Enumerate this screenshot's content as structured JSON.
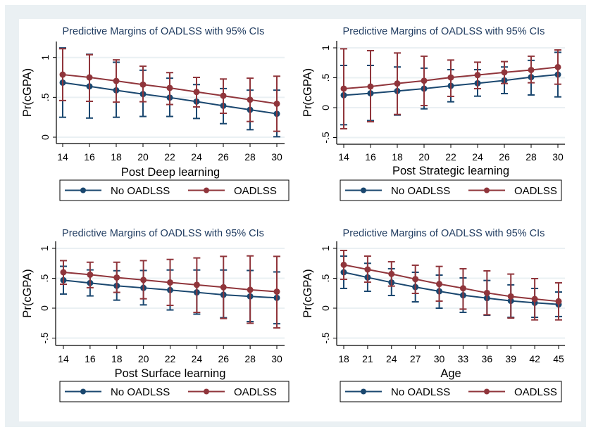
{
  "colors": {
    "no_oadlss": "#1a476f",
    "oadlss": "#90353b",
    "grid": "#eaf0f3",
    "frame": "#eaf0f3",
    "title": "#1e3a5f"
  },
  "chart_data": [
    {
      "type": "line",
      "title": "Predictive Margins of OADLSS with 95% CIs",
      "xlabel": "Post Deep learning",
      "ylabel": "Pr(cGPA)",
      "x": [
        14,
        16,
        18,
        20,
        22,
        24,
        26,
        28,
        30
      ],
      "x_ticks": [
        "14",
        "16",
        "18",
        "20",
        "22",
        "24",
        "26",
        "28",
        "30"
      ],
      "ylim": [
        -0.05,
        1.2
      ],
      "y_ticks": [
        0,
        0.5,
        1
      ],
      "y_tick_labels": [
        "0",
        ".5",
        "1"
      ],
      "grid": true,
      "legend": "bottom",
      "series": [
        {
          "name": "No OADLSS",
          "values": [
            0.685,
            0.638,
            0.588,
            0.541,
            0.497,
            0.447,
            0.394,
            0.344,
            0.294
          ],
          "ci_low": [
            0.25,
            0.24,
            0.25,
            0.26,
            0.26,
            0.235,
            0.17,
            0.094,
            0.006
          ],
          "ci_high": [
            1.12,
            1.04,
            0.94,
            0.84,
            0.74,
            0.66,
            0.61,
            0.59,
            0.59
          ]
        },
        {
          "name": "OADLSS",
          "values": [
            0.785,
            0.75,
            0.706,
            0.66,
            0.618,
            0.568,
            0.52,
            0.47,
            0.42
          ],
          "ci_low": [
            0.46,
            0.45,
            0.44,
            0.445,
            0.41,
            0.38,
            0.3,
            0.197,
            0.074
          ],
          "ci_high": [
            1.11,
            1.035,
            0.97,
            0.89,
            0.81,
            0.75,
            0.73,
            0.74,
            0.765
          ]
        }
      ]
    },
    {
      "type": "line",
      "title": "Predictive Margins of OADLSS with 95% CIs",
      "xlabel": "Post Strategic learning",
      "ylabel": "Pr(cGPA)",
      "x": [
        14,
        16,
        18,
        20,
        22,
        24,
        26,
        28,
        30
      ],
      "x_ticks": [
        "14",
        "16",
        "18",
        "20",
        "22",
        "24",
        "26",
        "28",
        "30"
      ],
      "ylim": [
        -0.62,
        1.1
      ],
      "y_ticks": [
        -0.5,
        0,
        0.5,
        1
      ],
      "y_tick_labels": [
        "-.5",
        "0",
        ".5",
        "1"
      ],
      "grid": true,
      "legend": "bottom",
      "series": [
        {
          "name": "No OADLSS",
          "values": [
            0.208,
            0.24,
            0.278,
            0.318,
            0.365,
            0.408,
            0.455,
            0.51,
            0.553
          ],
          "ci_low": [
            -0.286,
            -0.216,
            -0.125,
            -0.02,
            0.098,
            0.192,
            0.235,
            0.212,
            0.18
          ],
          "ci_high": [
            0.706,
            0.706,
            0.68,
            0.66,
            0.635,
            0.635,
            0.68,
            0.79,
            0.925
          ]
        },
        {
          "name": "OADLSS",
          "values": [
            0.318,
            0.353,
            0.404,
            0.45,
            0.505,
            0.545,
            0.59,
            0.63,
            0.678
          ],
          "ci_low": [
            -0.353,
            -0.235,
            -0.114,
            0.035,
            0.188,
            0.318,
            0.404,
            0.416,
            0.392
          ],
          "ci_high": [
            0.984,
            0.953,
            0.914,
            0.86,
            0.796,
            0.76,
            0.77,
            0.86,
            0.965
          ]
        }
      ]
    },
    {
      "type": "line",
      "title": "Predictive Margins of OADLSS with 95% CIs",
      "xlabel": "Post Surface learning",
      "ylabel": "Pr(cGPA)",
      "x": [
        14,
        16,
        18,
        20,
        22,
        24,
        26,
        28,
        30
      ],
      "x_ticks": [
        "14",
        "16",
        "18",
        "20",
        "22",
        "24",
        "26",
        "28",
        "30"
      ],
      "ylim": [
        -0.62,
        1.1
      ],
      "y_ticks": [
        -0.5,
        0,
        0.5,
        1
      ],
      "y_tick_labels": [
        "-.5",
        "0",
        ".5",
        "1"
      ],
      "grid": true,
      "legend": "bottom",
      "series": [
        {
          "name": "No OADLSS",
          "values": [
            0.468,
            0.421,
            0.374,
            0.339,
            0.303,
            0.264,
            0.224,
            0.197,
            0.173
          ],
          "ci_low": [
            0.236,
            0.205,
            0.134,
            0.055,
            -0.03,
            -0.1,
            -0.16,
            -0.224,
            -0.26
          ],
          "ci_high": [
            0.7,
            0.64,
            0.626,
            0.63,
            0.638,
            0.638,
            0.638,
            0.63,
            0.606
          ]
        },
        {
          "name": "OADLSS",
          "values": [
            0.6,
            0.56,
            0.512,
            0.472,
            0.43,
            0.39,
            0.35,
            0.307,
            0.276
          ],
          "ci_low": [
            0.4,
            0.343,
            0.264,
            0.157,
            0.047,
            -0.071,
            -0.173,
            -0.252,
            -0.33
          ],
          "ci_high": [
            0.795,
            0.768,
            0.768,
            0.795,
            0.815,
            0.84,
            0.866,
            0.874,
            0.866
          ]
        }
      ]
    },
    {
      "type": "line",
      "title": "Predictive Margins of OADLSS with 95% CIs",
      "xlabel": "Age",
      "ylabel": "Pr(cGPA)",
      "x": [
        18,
        21,
        24,
        27,
        30,
        33,
        36,
        39,
        42,
        45
      ],
      "x_ticks": [
        "18",
        "21",
        "24",
        "27",
        "30",
        "33",
        "36",
        "39",
        "42",
        "45"
      ],
      "ylim": [
        -0.62,
        1.1
      ],
      "y_ticks": [
        -0.5,
        0,
        0.5,
        1
      ],
      "y_tick_labels": [
        "-.5",
        "0",
        ".5",
        "1"
      ],
      "grid": true,
      "legend": "bottom",
      "series": [
        {
          "name": "No OADLSS",
          "values": [
            0.6,
            0.514,
            0.43,
            0.353,
            0.282,
            0.216,
            0.168,
            0.122,
            0.09,
            0.063
          ],
          "ci_low": [
            0.33,
            0.282,
            0.212,
            0.106,
            0.0,
            -0.07,
            -0.118,
            -0.153,
            -0.153,
            -0.14
          ],
          "ci_high": [
            0.87,
            0.75,
            0.66,
            0.6,
            0.553,
            0.506,
            0.463,
            0.39,
            0.33,
            0.27
          ]
        },
        {
          "name": "OADLSS",
          "values": [
            0.725,
            0.647,
            0.572,
            0.486,
            0.404,
            0.333,
            0.255,
            0.196,
            0.153,
            0.114
          ],
          "ci_low": [
            0.482,
            0.435,
            0.369,
            0.247,
            0.118,
            -0.016,
            -0.11,
            -0.165,
            -0.196,
            -0.196
          ],
          "ci_high": [
            0.965,
            0.87,
            0.776,
            0.718,
            0.698,
            0.659,
            0.624,
            0.57,
            0.494,
            0.424
          ]
        }
      ]
    }
  ]
}
